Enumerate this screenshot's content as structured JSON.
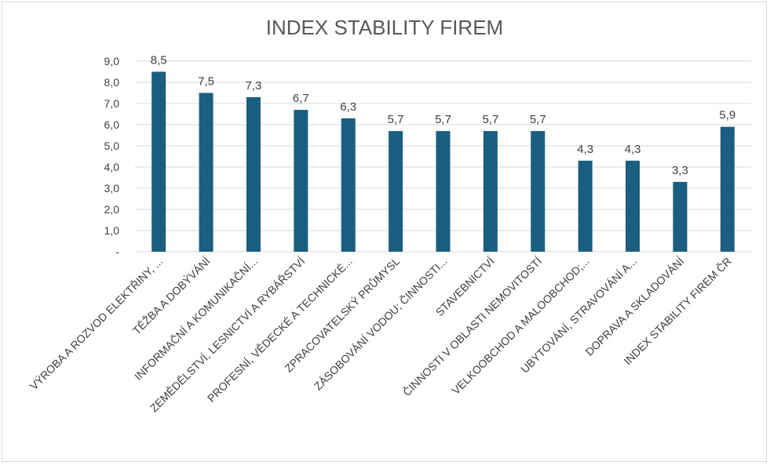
{
  "chart_data": {
    "type": "bar",
    "title": "INDEX STABILITY FIREM",
    "xlabel": "",
    "ylabel": "",
    "ylim": [
      0,
      9
    ],
    "yticks": [
      "-",
      "1,0",
      "2,0",
      "3,0",
      "4,0",
      "5,0",
      "6,0",
      "7,0",
      "8,0",
      "9,0"
    ],
    "grid": true,
    "legend": "none",
    "bar_color": "#1a5e82",
    "categories": [
      "VÝROBA A ROZVOD ELEKTŘINY, ...",
      "TĚŽBA A DOBÝVÁNÍ",
      "INFORMAČNÍ A KOMUNIKAČNÍ...",
      "ZEMĚDĚLSTVÍ, LESNICTVÍ A RYBÁŘSTVÍ",
      "PROFESNÍ, VĚDECKÉ A TECHNICKÉ...",
      "ZPRACOVATELSKÝ PRŮMYSL",
      "ZÁSOBOVÁNÍ VODOU; ČINNOSTI...",
      "STAVEBNICTVÍ",
      "ČINNOSTI V OBLASTI NEMOVITOSTÍ",
      "VELKOOBCHOD A MALOOBCHOD;...",
      "UBYTOVÁNÍ, STRAVOVÁNÍ A...",
      "DOPRAVA A SKLADOVÁNÍ",
      "INDEX STABILITY FIREM ČR"
    ],
    "values": [
      8.5,
      7.5,
      7.3,
      6.7,
      6.3,
      5.7,
      5.7,
      5.7,
      5.7,
      4.3,
      4.3,
      3.3,
      5.9
    ],
    "data_labels": [
      "8,5",
      "7,5",
      "7,3",
      "6,7",
      "6,3",
      "5,7",
      "5,7",
      "5,7",
      "5,7",
      "4,3",
      "4,3",
      "3,3",
      "5,9"
    ]
  }
}
